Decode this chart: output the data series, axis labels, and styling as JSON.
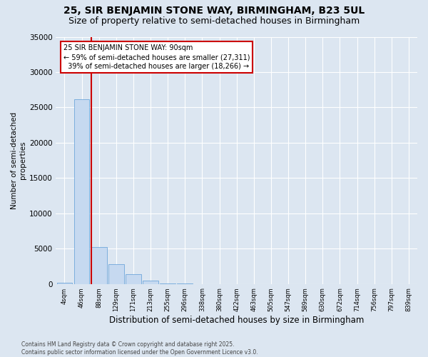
{
  "title": "25, SIR BENJAMIN STONE WAY, BIRMINGHAM, B23 5UL",
  "subtitle": "Size of property relative to semi-detached houses in Birmingham",
  "xlabel": "Distribution of semi-detached houses by size in Birmingham",
  "ylabel": "Number of semi-detached\nproperties",
  "footer_line1": "Contains HM Land Registry data © Crown copyright and database right 2025.",
  "footer_line2": "Contains public sector information licensed under the Open Government Licence v3.0.",
  "property_label": "25 SIR BENJAMIN STONE WAY: 90sqm",
  "pct_smaller": 59,
  "pct_larger": 39,
  "count_smaller": 27311,
  "count_larger": 18266,
  "bin_labels": [
    "4sqm",
    "46sqm",
    "88sqm",
    "129sqm",
    "171sqm",
    "213sqm",
    "255sqm",
    "296sqm",
    "338sqm",
    "380sqm",
    "422sqm",
    "463sqm",
    "505sqm",
    "547sqm",
    "589sqm",
    "630sqm",
    "672sqm",
    "714sqm",
    "756sqm",
    "797sqm",
    "839sqm"
  ],
  "bar_values": [
    200,
    26200,
    5200,
    2800,
    1400,
    500,
    80,
    20,
    5,
    2,
    1,
    0,
    0,
    0,
    0,
    0,
    0,
    0,
    0,
    0,
    0
  ],
  "bar_color": "#c6d9f0",
  "bar_edge_color": "#5b9bd5",
  "vline_color": "#cc0000",
  "ylim": [
    0,
    35000
  ],
  "yticks": [
    0,
    5000,
    10000,
    15000,
    20000,
    25000,
    30000,
    35000
  ],
  "bg_color": "#dce6f1",
  "plot_bg_color": "#dce6f1",
  "grid_color": "#ffffff",
  "annotation_box_color": "#cc0000",
  "title_fontsize": 10,
  "subtitle_fontsize": 9
}
